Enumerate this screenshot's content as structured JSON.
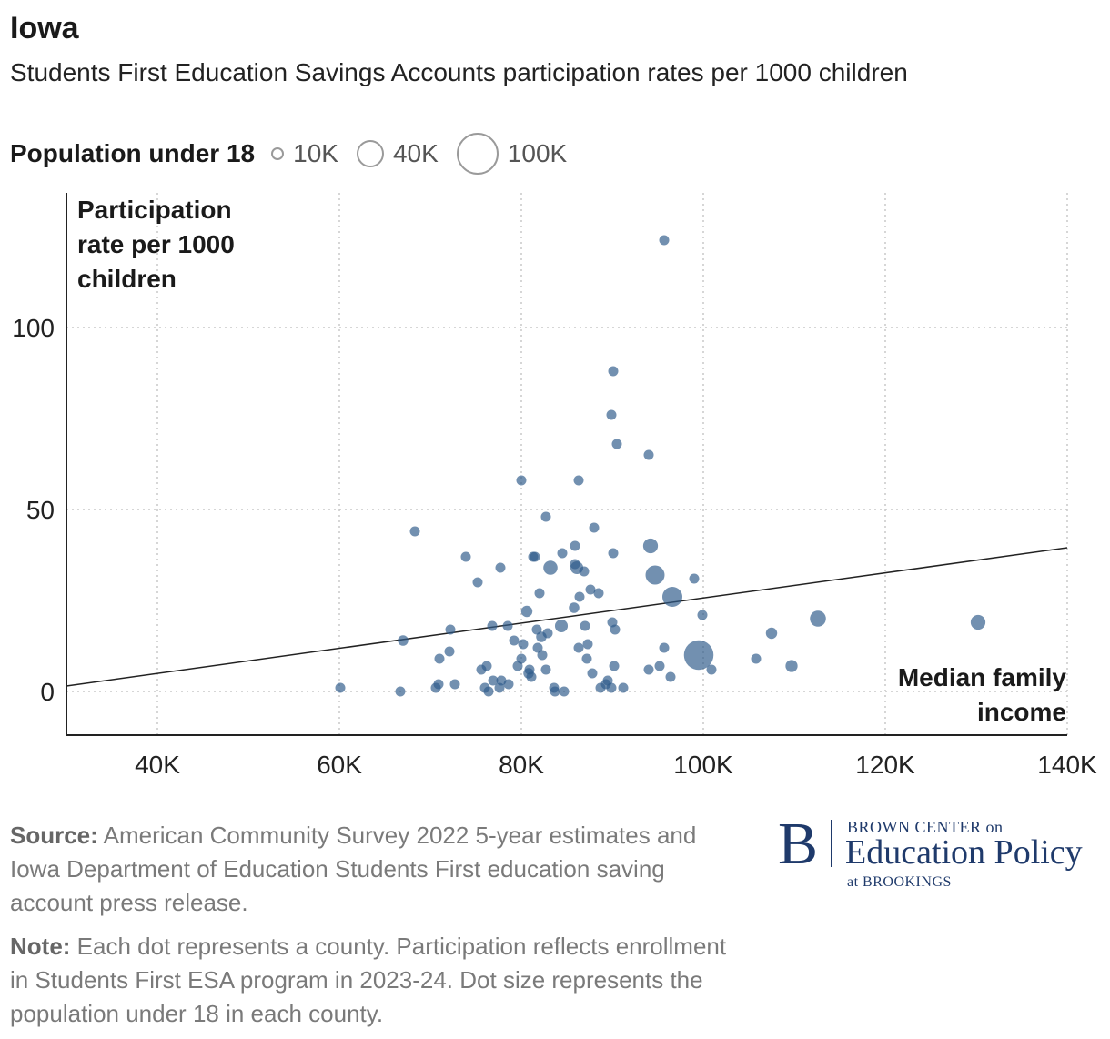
{
  "header": {
    "title": "Iowa",
    "subtitle": "Students First Education Savings Accounts participation rates per 1000 children"
  },
  "legend": {
    "title": "Population under 18",
    "items": [
      {
        "label": "10K",
        "value": 10000
      },
      {
        "label": "40K",
        "value": 40000
      },
      {
        "label": "100K",
        "value": 100000
      }
    ]
  },
  "colors": {
    "dot": "#2f5c8a",
    "trend": "#222222",
    "grid": "#c8c8c8",
    "axis": "#222222"
  },
  "chart_data": {
    "type": "scatter",
    "title": "Students First Education Savings Accounts participation rates per 1000 children",
    "xlabel": "Median family income",
    "ylabel": "Participation rate per 1000 children",
    "xlim": [
      30000,
      140000
    ],
    "ylim": [
      -12,
      137
    ],
    "xticks": [
      {
        "value": 40000,
        "label": "40K"
      },
      {
        "value": 60000,
        "label": "60K"
      },
      {
        "value": 80000,
        "label": "80K"
      },
      {
        "value": 100000,
        "label": "100K"
      },
      {
        "value": 120000,
        "label": "120K"
      },
      {
        "value": 140000,
        "label": "140K"
      }
    ],
    "yticks": [
      {
        "value": 0,
        "label": "0"
      },
      {
        "value": 50,
        "label": "50"
      },
      {
        "value": 100,
        "label": "100"
      }
    ],
    "trendline": {
      "x": [
        30000,
        140000
      ],
      "y": [
        1.5,
        39.5
      ]
    },
    "size_variable": "Population under 18",
    "points": [
      {
        "x": 60100,
        "y": 1,
        "pop": 2500
      },
      {
        "x": 66700,
        "y": 0,
        "pop": 2500
      },
      {
        "x": 67000,
        "y": 14,
        "pop": 6000
      },
      {
        "x": 68300,
        "y": 44,
        "pop": 3000
      },
      {
        "x": 70600,
        "y": 1,
        "pop": 3000
      },
      {
        "x": 70900,
        "y": 2,
        "pop": 2500
      },
      {
        "x": 71000,
        "y": 9,
        "pop": 3500
      },
      {
        "x": 72100,
        "y": 11,
        "pop": 3000
      },
      {
        "x": 72200,
        "y": 17,
        "pop": 3000
      },
      {
        "x": 72700,
        "y": 2,
        "pop": 3000
      },
      {
        "x": 73900,
        "y": 37,
        "pop": 4000
      },
      {
        "x": 75200,
        "y": 30,
        "pop": 4500
      },
      {
        "x": 75600,
        "y": 6,
        "pop": 2500
      },
      {
        "x": 76000,
        "y": 1,
        "pop": 3000
      },
      {
        "x": 76200,
        "y": 7,
        "pop": 3000
      },
      {
        "x": 76400,
        "y": 0,
        "pop": 2500
      },
      {
        "x": 76800,
        "y": 18,
        "pop": 5000
      },
      {
        "x": 76900,
        "y": 3,
        "pop": 3000
      },
      {
        "x": 77600,
        "y": 1,
        "pop": 3500
      },
      {
        "x": 77700,
        "y": 34,
        "pop": 3500
      },
      {
        "x": 77800,
        "y": 3,
        "pop": 3000
      },
      {
        "x": 78500,
        "y": 18,
        "pop": 3500
      },
      {
        "x": 78600,
        "y": 2,
        "pop": 3000
      },
      {
        "x": 79200,
        "y": 14,
        "pop": 3000
      },
      {
        "x": 79600,
        "y": 7,
        "pop": 3000
      },
      {
        "x": 80000,
        "y": 58,
        "pop": 3000
      },
      {
        "x": 80000,
        "y": 9,
        "pop": 3000
      },
      {
        "x": 80200,
        "y": 13,
        "pop": 3000
      },
      {
        "x": 80600,
        "y": 22,
        "pop": 7000
      },
      {
        "x": 80800,
        "y": 5,
        "pop": 6000
      },
      {
        "x": 80900,
        "y": 6,
        "pop": 5000
      },
      {
        "x": 81100,
        "y": 4,
        "pop": 3000
      },
      {
        "x": 81300,
        "y": 37,
        "pop": 4500
      },
      {
        "x": 81500,
        "y": 37,
        "pop": 3500
      },
      {
        "x": 81700,
        "y": 17,
        "pop": 5500
      },
      {
        "x": 81800,
        "y": 12,
        "pop": 3000
      },
      {
        "x": 82000,
        "y": 27,
        "pop": 2500
      },
      {
        "x": 82200,
        "y": 15,
        "pop": 6000
      },
      {
        "x": 82300,
        "y": 10,
        "pop": 3500
      },
      {
        "x": 82700,
        "y": 48,
        "pop": 5000
      },
      {
        "x": 82700,
        "y": 6,
        "pop": 2500
      },
      {
        "x": 82900,
        "y": 16,
        "pop": 3500
      },
      {
        "x": 83200,
        "y": 34,
        "pop": 11000
      },
      {
        "x": 83600,
        "y": 1,
        "pop": 3000
      },
      {
        "x": 83700,
        "y": 0,
        "pop": 4000
      },
      {
        "x": 84400,
        "y": 18,
        "pop": 9000
      },
      {
        "x": 84500,
        "y": 38,
        "pop": 3500
      },
      {
        "x": 84700,
        "y": 0,
        "pop": 3000
      },
      {
        "x": 85800,
        "y": 23,
        "pop": 6000
      },
      {
        "x": 85900,
        "y": 40,
        "pop": 5000
      },
      {
        "x": 85900,
        "y": 35,
        "pop": 5000
      },
      {
        "x": 86100,
        "y": 34,
        "pop": 9000
      },
      {
        "x": 86300,
        "y": 58,
        "pop": 3000
      },
      {
        "x": 86300,
        "y": 12,
        "pop": 3000
      },
      {
        "x": 86400,
        "y": 26,
        "pop": 5000
      },
      {
        "x": 86900,
        "y": 33,
        "pop": 4000
      },
      {
        "x": 87000,
        "y": 18,
        "pop": 4500
      },
      {
        "x": 87200,
        "y": 9,
        "pop": 3500
      },
      {
        "x": 87300,
        "y": 13,
        "pop": 3500
      },
      {
        "x": 87600,
        "y": 28,
        "pop": 4000
      },
      {
        "x": 87800,
        "y": 5,
        "pop": 3000
      },
      {
        "x": 88000,
        "y": 45,
        "pop": 3000
      },
      {
        "x": 88500,
        "y": 27,
        "pop": 3500
      },
      {
        "x": 88700,
        "y": 1,
        "pop": 3500
      },
      {
        "x": 89300,
        "y": 2,
        "pop": 4000
      },
      {
        "x": 89500,
        "y": 3,
        "pop": 3500
      },
      {
        "x": 89900,
        "y": 76,
        "pop": 3000
      },
      {
        "x": 89900,
        "y": 1,
        "pop": 4000
      },
      {
        "x": 90000,
        "y": 19,
        "pop": 3000
      },
      {
        "x": 90100,
        "y": 38,
        "pop": 5000
      },
      {
        "x": 90100,
        "y": 88,
        "pop": 3500
      },
      {
        "x": 90200,
        "y": 7,
        "pop": 3500
      },
      {
        "x": 90300,
        "y": 17,
        "pop": 4500
      },
      {
        "x": 90500,
        "y": 68,
        "pop": 3500
      },
      {
        "x": 91200,
        "y": 1,
        "pop": 2500
      },
      {
        "x": 94000,
        "y": 65,
        "pop": 4000
      },
      {
        "x": 94000,
        "y": 6,
        "pop": 3000
      },
      {
        "x": 94200,
        "y": 40,
        "pop": 12000
      },
      {
        "x": 94700,
        "y": 32,
        "pop": 20000
      },
      {
        "x": 95200,
        "y": 7,
        "pop": 3000
      },
      {
        "x": 95700,
        "y": 124,
        "pop": 5000
      },
      {
        "x": 95700,
        "y": 12,
        "pop": 4500
      },
      {
        "x": 96400,
        "y": 4,
        "pop": 3000
      },
      {
        "x": 96600,
        "y": 26,
        "pop": 22000
      },
      {
        "x": 99000,
        "y": 31,
        "pop": 4000
      },
      {
        "x": 99500,
        "y": 10,
        "pop": 48000
      },
      {
        "x": 99900,
        "y": 21,
        "pop": 4000
      },
      {
        "x": 100900,
        "y": 6,
        "pop": 3500
      },
      {
        "x": 105800,
        "y": 9,
        "pop": 4000
      },
      {
        "x": 107500,
        "y": 16,
        "pop": 7000
      },
      {
        "x": 109700,
        "y": 7,
        "pop": 8000
      },
      {
        "x": 112600,
        "y": 20,
        "pop": 14000
      },
      {
        "x": 130200,
        "y": 19,
        "pop": 12000
      }
    ]
  },
  "axis_titles": {
    "y_line1": "Participation",
    "y_line2": "rate per 1000",
    "y_line3": "children",
    "x_line1": "Median family",
    "x_line2": "income"
  },
  "footer": {
    "source_label": "Source:",
    "source_text": "American Community Survey 2022 5-year estimates and Iowa Department of Education Students First education saving account press release.",
    "note_label": "Note:",
    "note_text": "Each dot represents a county. Participation reflects enrollment in Students First ESA program in 2023-24. Dot size represents the population under 18 in each county."
  },
  "brand": {
    "letter": "B",
    "top": "BROWN CENTER on",
    "main": "Education Policy",
    "bottom": "at BROOKINGS"
  }
}
